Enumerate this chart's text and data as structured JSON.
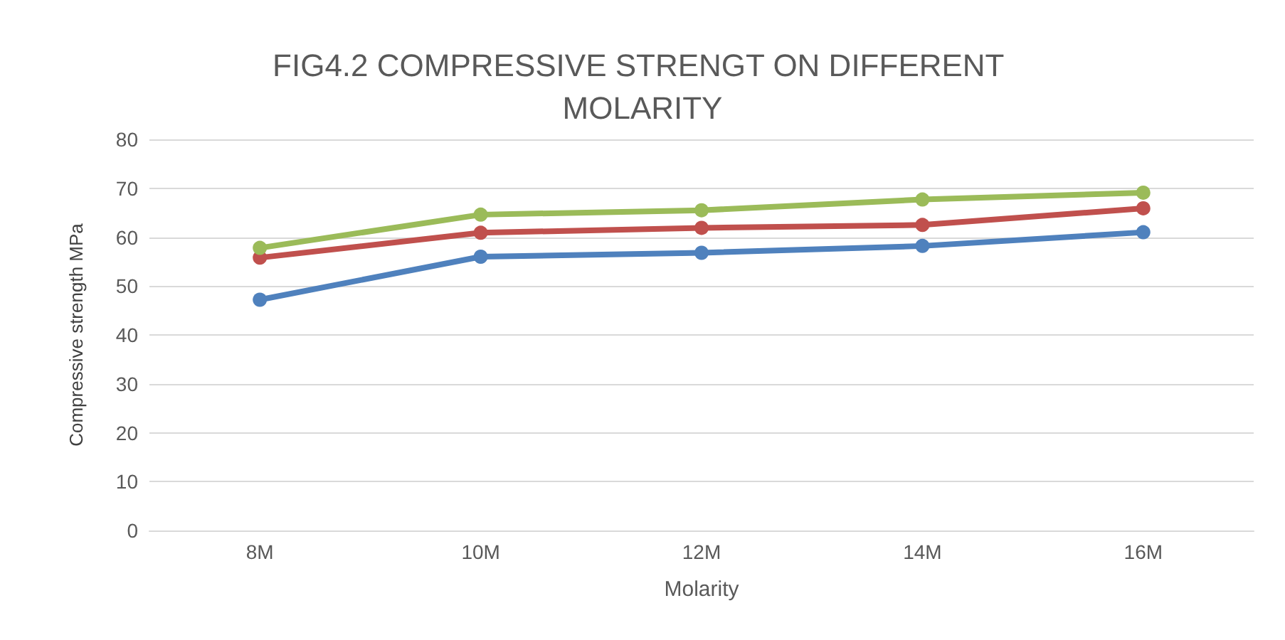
{
  "chart_data": {
    "type": "line",
    "title": "FIG4.2 COMPRESSIVE STRENGT ON DIFFERENT MOLARITY",
    "xlabel": "Molarity",
    "ylabel": "Compressive strength MPa",
    "categories": [
      "8M",
      "10M",
      "12M",
      "14M",
      "16M"
    ],
    "series": [
      {
        "color": "#4f81bd",
        "values": [
          47.2,
          56,
          56.8,
          58.2,
          61
        ]
      },
      {
        "color": "#c0504d",
        "values": [
          55.8,
          60.9,
          61.9,
          62.5,
          65.9
        ]
      },
      {
        "color": "#9bbb59",
        "values": [
          57.8,
          64.6,
          65.5,
          67.7,
          69.1
        ]
      }
    ],
    "ylim": [
      0,
      80
    ],
    "yticks": [
      0,
      10,
      20,
      30,
      40,
      50,
      60,
      70,
      80
    ],
    "grid": "y",
    "marker": "circle",
    "line_style": "solid"
  }
}
